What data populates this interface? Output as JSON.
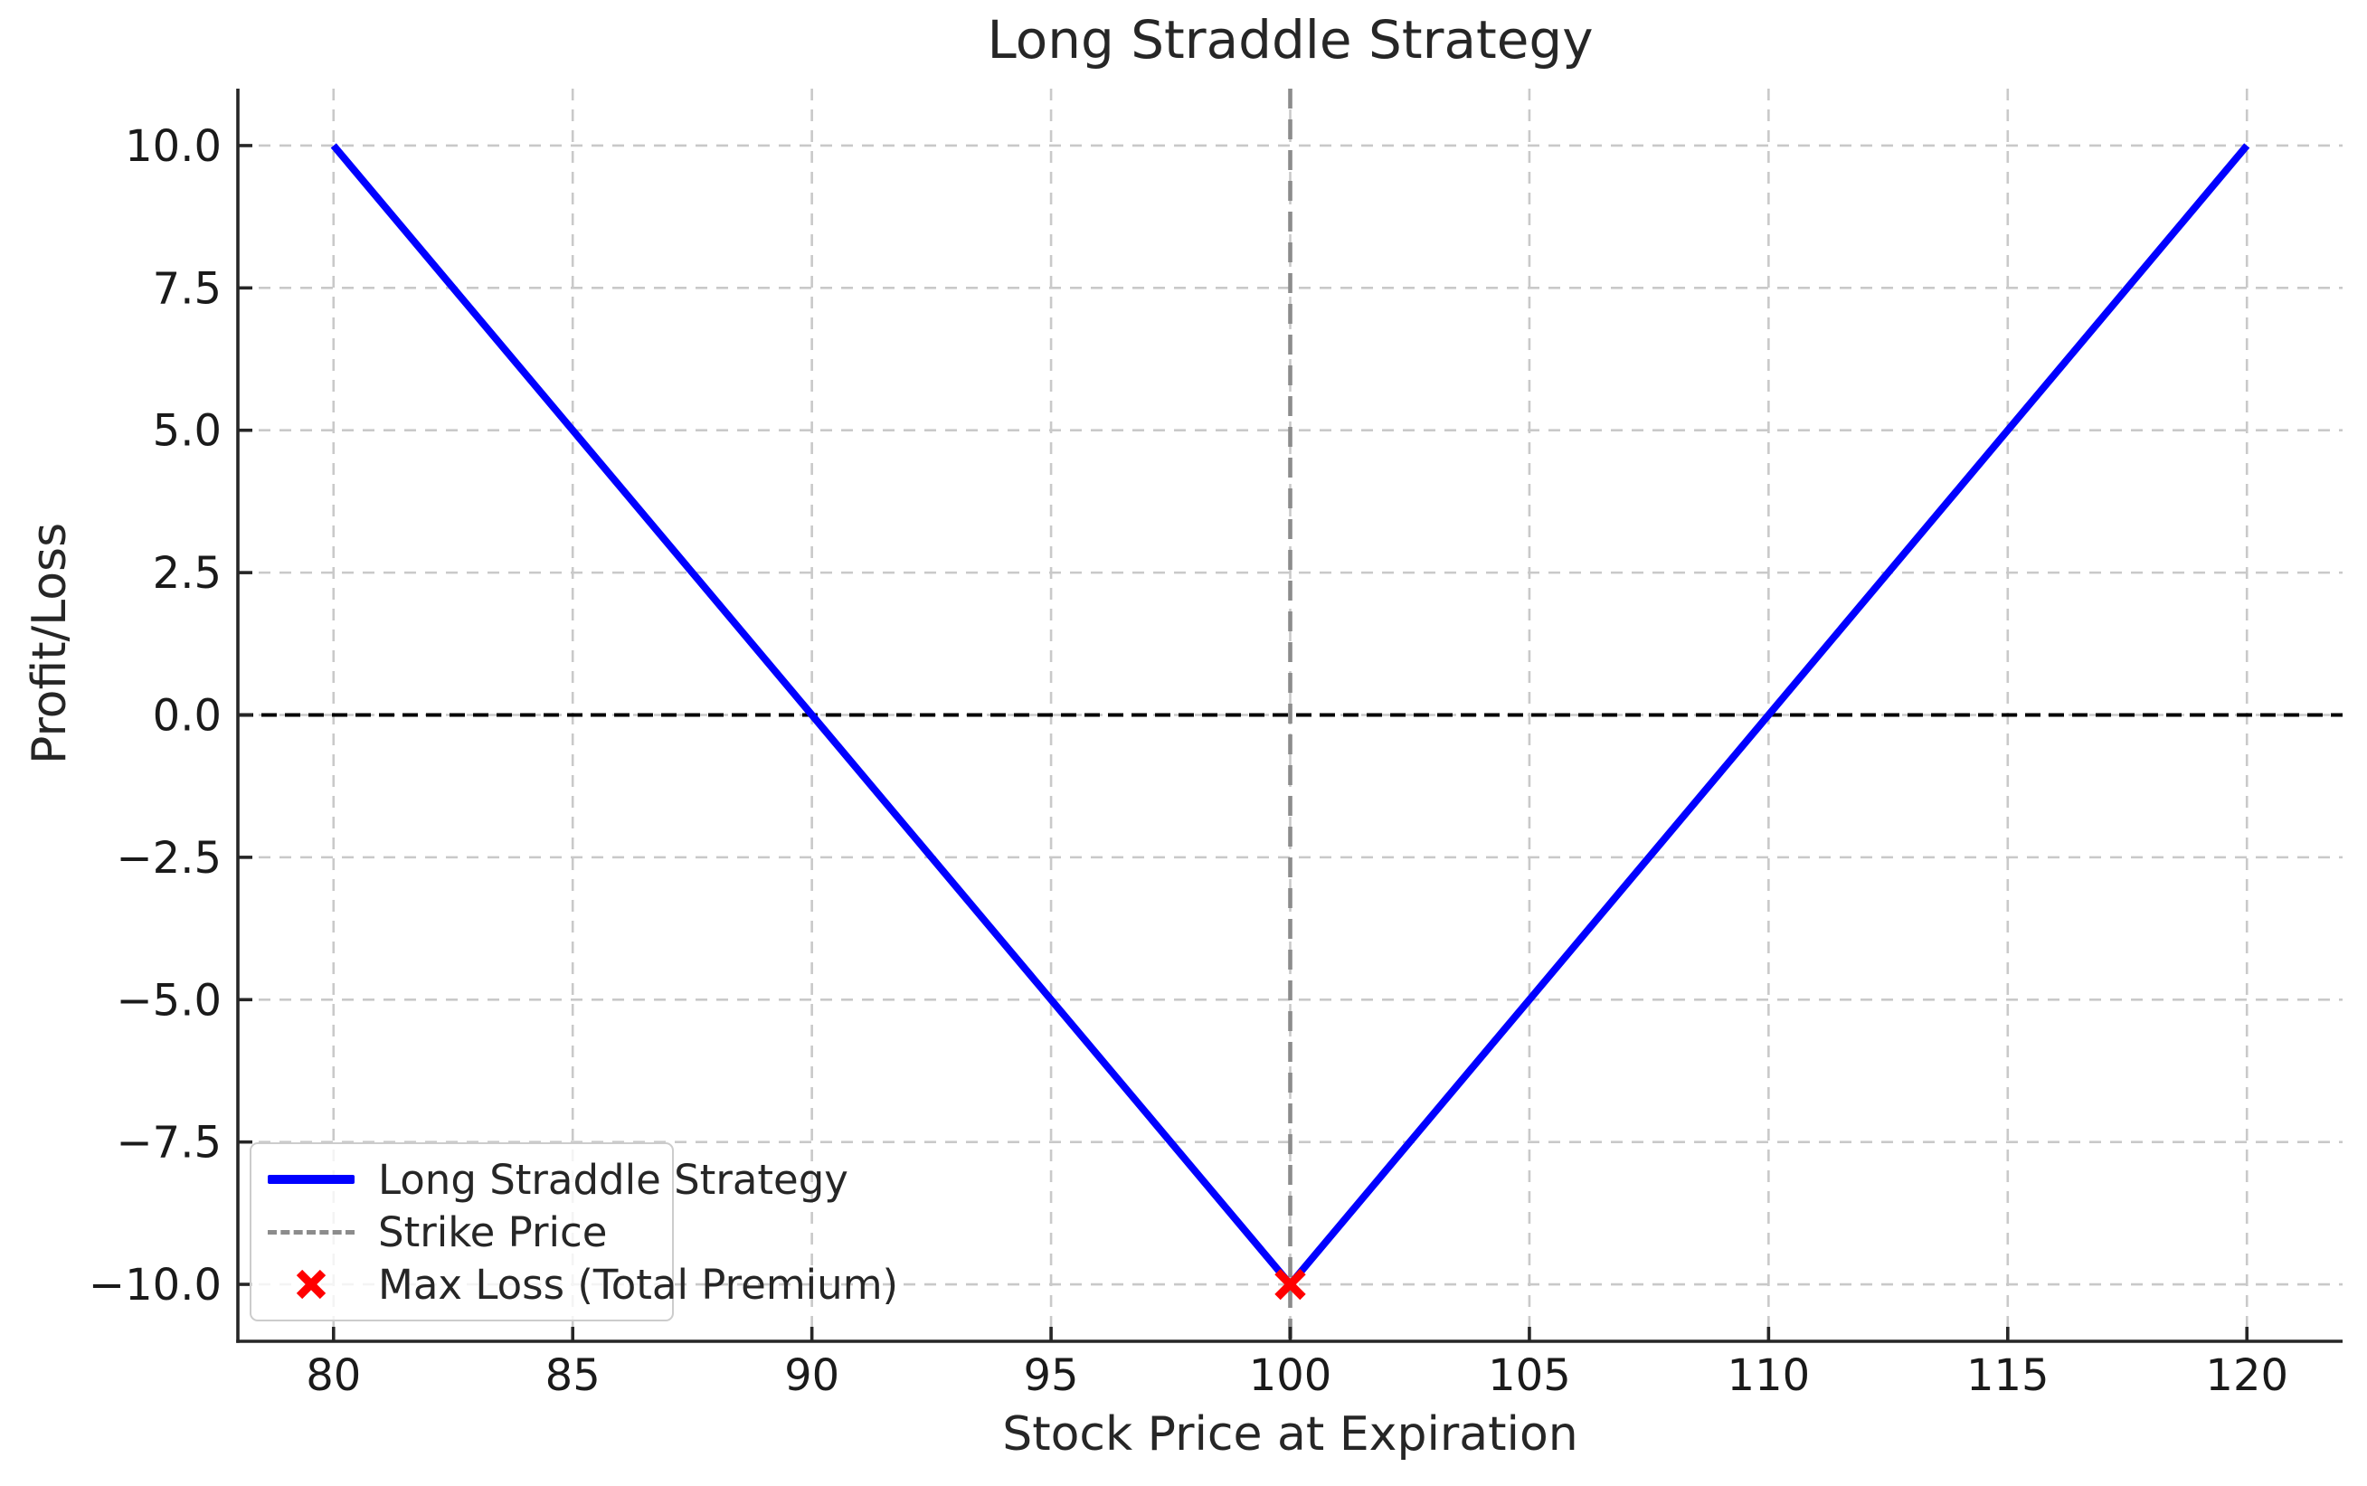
{
  "chart_data": {
    "type": "line",
    "title": "Long Straddle Strategy",
    "xlabel": "Stock Price at Expiration",
    "ylabel": "Profit/Loss",
    "xlim": [
      78,
      122
    ],
    "ylim": [
      -11,
      11
    ],
    "grid": true,
    "legend_position": "lower-left",
    "xticks": {
      "values": [
        80,
        85,
        90,
        95,
        100,
        105,
        110,
        115,
        120
      ],
      "labels": [
        "80",
        "85",
        "90",
        "95",
        "100",
        "105",
        "110",
        "115",
        "120"
      ]
    },
    "yticks": {
      "values": [
        10,
        7.5,
        5,
        2.5,
        0,
        -2.5,
        -5,
        -7.5,
        -10
      ],
      "labels": [
        "10.0",
        "7.5",
        "5.0",
        "2.5",
        "0.0",
        "−2.5",
        "−5.0",
        "−7.5",
        "−10.0"
      ]
    },
    "series": [
      {
        "name": "Long Straddle Strategy",
        "color": "#0000ff",
        "style": "solid",
        "x": [
          80,
          85,
          90,
          95,
          100,
          105,
          110,
          115,
          120
        ],
        "y": [
          10,
          5,
          0,
          -5,
          -10,
          -5,
          0,
          5,
          10
        ]
      }
    ],
    "reference_lines": [
      {
        "name": "Zero Line",
        "orientation": "horizontal",
        "value": 0,
        "color": "#000000",
        "style": "dashed"
      },
      {
        "name": "Strike Price",
        "orientation": "vertical",
        "value": 100,
        "color": "#8c8c8c",
        "style": "dashed"
      }
    ],
    "markers": [
      {
        "name": "Max Loss (Total Premium)",
        "x": 100,
        "y": -10,
        "shape": "x",
        "color": "#ff0000"
      }
    ],
    "legend": {
      "entries": [
        {
          "label": "Long Straddle Strategy",
          "swatch": "blue-solid-line",
          "color": "#0000ff"
        },
        {
          "label": "Strike Price",
          "swatch": "gray-dashed-line",
          "color": "#8c8c8c"
        },
        {
          "label": "Max Loss (Total Premium)",
          "swatch": "red-x-marker",
          "color": "#ff0000"
        }
      ]
    },
    "grid_color": "#c9c9c9",
    "axis_color": "#262626",
    "text_color": "#1a1a1a"
  }
}
